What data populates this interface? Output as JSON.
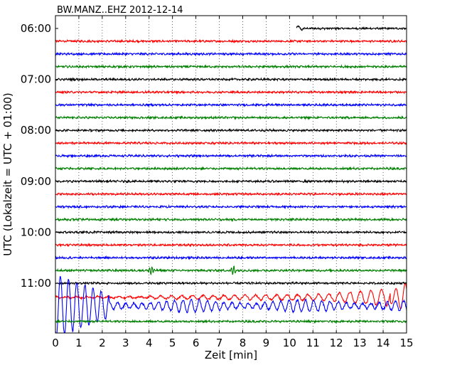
{
  "chart_data": {
    "type": "line",
    "title": "BW.MANZ..EHZ 2012-12-14",
    "xlabel": "Zeit  [min]",
    "ylabel": "UTC (Lokalzeit = UTC + 01:00)",
    "xlim": [
      0,
      15
    ],
    "x_ticks": [
      "0",
      "1",
      "2",
      "3",
      "4",
      "5",
      "6",
      "7",
      "8",
      "9",
      "10",
      "11",
      "12",
      "13",
      "14",
      "15"
    ],
    "y_tick_labels": [
      "06:00",
      "07:00",
      "08:00",
      "09:00",
      "10:00",
      "11:00"
    ],
    "grid": "vertical dotted",
    "trace_interval_minutes": 15,
    "trace_color_cycle": [
      "#000000",
      "#ff0000",
      "#0000ff",
      "#008000"
    ],
    "series": [
      {
        "start": "06:00",
        "color": "#000000",
        "data_starts_at_min": 10.3,
        "amplitude": "low"
      },
      {
        "start": "06:15",
        "color": "#ff0000",
        "amplitude": "low"
      },
      {
        "start": "06:30",
        "color": "#0000ff",
        "amplitude": "low"
      },
      {
        "start": "06:45",
        "color": "#008000",
        "amplitude": "low"
      },
      {
        "start": "07:00",
        "color": "#000000",
        "amplitude": "low"
      },
      {
        "start": "07:15",
        "color": "#ff0000",
        "amplitude": "low"
      },
      {
        "start": "07:30",
        "color": "#0000ff",
        "amplitude": "low"
      },
      {
        "start": "07:45",
        "color": "#008000",
        "amplitude": "low"
      },
      {
        "start": "08:00",
        "color": "#000000",
        "amplitude": "low"
      },
      {
        "start": "08:15",
        "color": "#ff0000",
        "amplitude": "low"
      },
      {
        "start": "08:30",
        "color": "#0000ff",
        "amplitude": "low"
      },
      {
        "start": "08:45",
        "color": "#008000",
        "amplitude": "low"
      },
      {
        "start": "09:00",
        "color": "#000000",
        "amplitude": "low"
      },
      {
        "start": "09:15",
        "color": "#ff0000",
        "amplitude": "low"
      },
      {
        "start": "09:30",
        "color": "#0000ff",
        "amplitude": "low"
      },
      {
        "start": "09:45",
        "color": "#008000",
        "amplitude": "low"
      },
      {
        "start": "10:00",
        "color": "#000000",
        "amplitude": "low"
      },
      {
        "start": "10:15",
        "color": "#ff0000",
        "amplitude": "low"
      },
      {
        "start": "10:30",
        "color": "#0000ff",
        "amplitude": "low"
      },
      {
        "start": "10:45",
        "color": "#008000",
        "amplitude": "low",
        "spikes_at_min": [
          4.1,
          7.6
        ]
      },
      {
        "start": "11:00",
        "color": "#000000",
        "amplitude": "low"
      },
      {
        "start": "11:15",
        "color": "#ff0000",
        "amplitude": "growing",
        "large_oscillation_from_min": 11.5
      },
      {
        "start": "11:30",
        "color": "#0000ff",
        "amplitude": "high",
        "large_oscillation_until_min": 2.3
      },
      {
        "start": "11:45",
        "color": "#008000",
        "amplitude": "low"
      }
    ]
  }
}
